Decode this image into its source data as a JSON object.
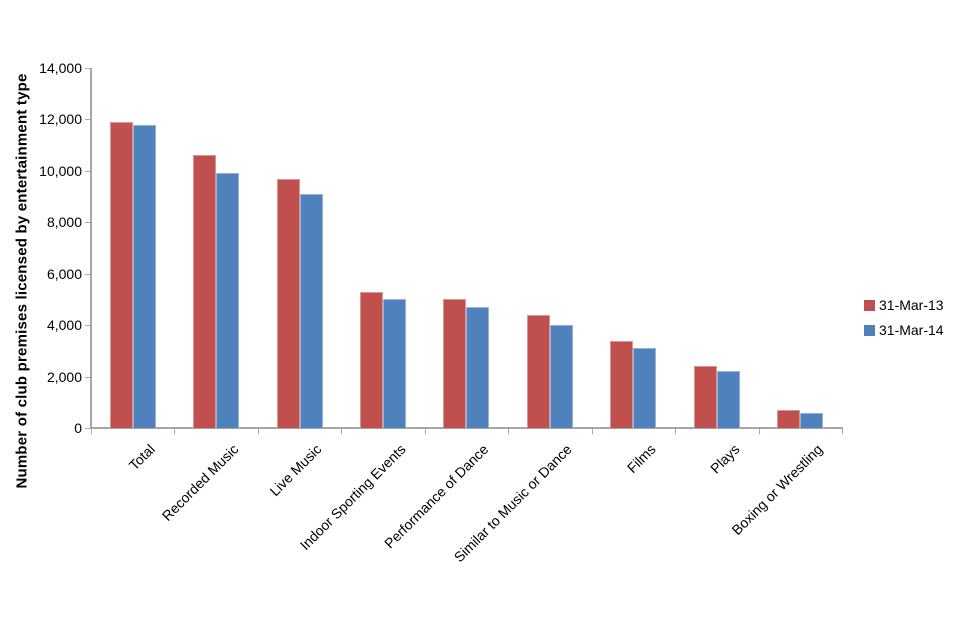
{
  "chart_data": {
    "type": "bar",
    "title": "",
    "ylabel": "Number of club premises licensed by entertainment type",
    "xlabel": "",
    "categories": [
      "Total",
      "Recorded Music",
      "Live Music",
      "Indoor Sporting Events",
      "Performance of Dance",
      "Similar to Music or Dance",
      "Films",
      "Plays",
      "Boxing or Wrestling"
    ],
    "series": [
      {
        "name": "31-Mar-13",
        "color": "#c0504d",
        "border_color": "#d99694",
        "values": [
          11900,
          10600,
          9700,
          5300,
          5000,
          4400,
          3400,
          2400,
          700
        ]
      },
      {
        "name": "31-Mar-14",
        "color": "#4f81bd",
        "border_color": "#95b3d7",
        "values": [
          11800,
          9900,
          9100,
          5000,
          4700,
          4000,
          3100,
          2200,
          600
        ]
      }
    ],
    "ylim": [
      0,
      14000
    ],
    "ytick_step": 2000,
    "ytick_labels": [
      "0",
      "2,000",
      "4,000",
      "6,000",
      "8,000",
      "10,000",
      "12,000",
      "14,000"
    ],
    "grid": false,
    "legend_position": "right"
  },
  "colors": {
    "axis": "#a6a6a6",
    "text": "#000000",
    "background": "#ffffff"
  }
}
